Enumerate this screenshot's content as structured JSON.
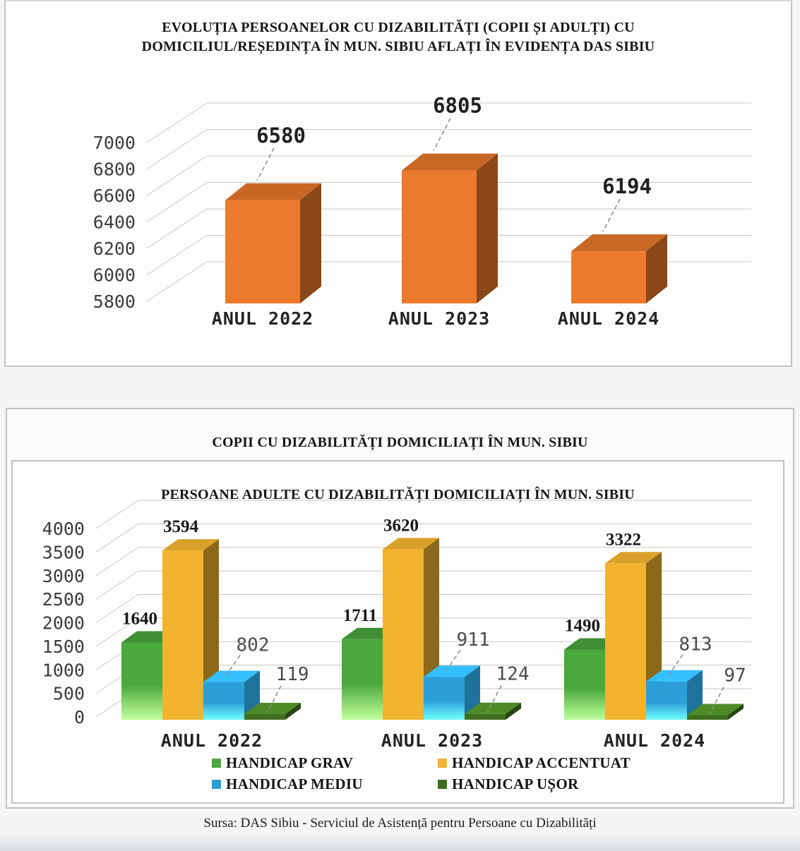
{
  "page": {
    "source_note": "Sursa: DAS Sibiu - Serviciul de Asistență pentru Persoane cu Dizabilități"
  },
  "chart_data": [
    {
      "type": "bar",
      "style": "3d-column",
      "title": "EVOLUȚIA  PERSOANELOR CU DIZABILITĂȚI (COPII ȘI ADULȚI) CU DOMICILIUL/REȘEDINȚA  ÎN MUN. SIBIU AFLAȚI ÎN EVIDENȚA DAS SIBIU",
      "title_line1": "EVOLUȚIA  PERSOANELOR CU DIZABILITĂȚI (COPII ȘI ADULȚI) CU",
      "title_line2": "DOMICILIUL/REȘEDINȚA  ÎN MUN. SIBIU AFLAȚI ÎN EVIDENȚA DAS SIBIU",
      "categories": [
        "ANUL 2022",
        "ANUL 2023",
        "ANUL 2024"
      ],
      "values": [
        6580,
        6805,
        6194
      ],
      "bar_color": "#ec7a2c",
      "ylim": [
        5800,
        7000
      ],
      "ytick_step": 200,
      "yticks": [
        7000,
        6800,
        6600,
        6400,
        6200,
        6000,
        5800
      ],
      "grid": true,
      "legend": false
    },
    {
      "type": "bar",
      "style": "3d-column-grouped",
      "outer_title": "COPII CU DIZABILITĂȚI DOMICILIAȚI ÎN MUN. SIBIU",
      "title": "PERSOANE ADULTE CU DIZABILITĂȚI DOMICILIAȚI ÎN MUN. SIBIU",
      "categories": [
        "ANUL 2022",
        "ANUL 2023",
        "ANUL 2024"
      ],
      "series": [
        {
          "name": "HANDICAP GRAV",
          "color": "#4aa83c",
          "values": [
            1640,
            1711,
            1490
          ]
        },
        {
          "name": "HANDICAP ACCENTUAT",
          "color": "#f2b32f",
          "values": [
            3594,
            3620,
            3322
          ]
        },
        {
          "name": "HANDICAP MEDIU",
          "color": "#2b9fd8",
          "values": [
            802,
            911,
            813
          ]
        },
        {
          "name": "HANDICAP UȘOR",
          "color": "#3e6f1f",
          "values": [
            119,
            124,
            97
          ]
        }
      ],
      "ylim": [
        0,
        4000
      ],
      "ytick_step": 500,
      "yticks": [
        4000,
        3500,
        3000,
        2500,
        2000,
        1500,
        1000,
        500,
        0
      ],
      "grid": true,
      "legend_position": "bottom"
    }
  ]
}
